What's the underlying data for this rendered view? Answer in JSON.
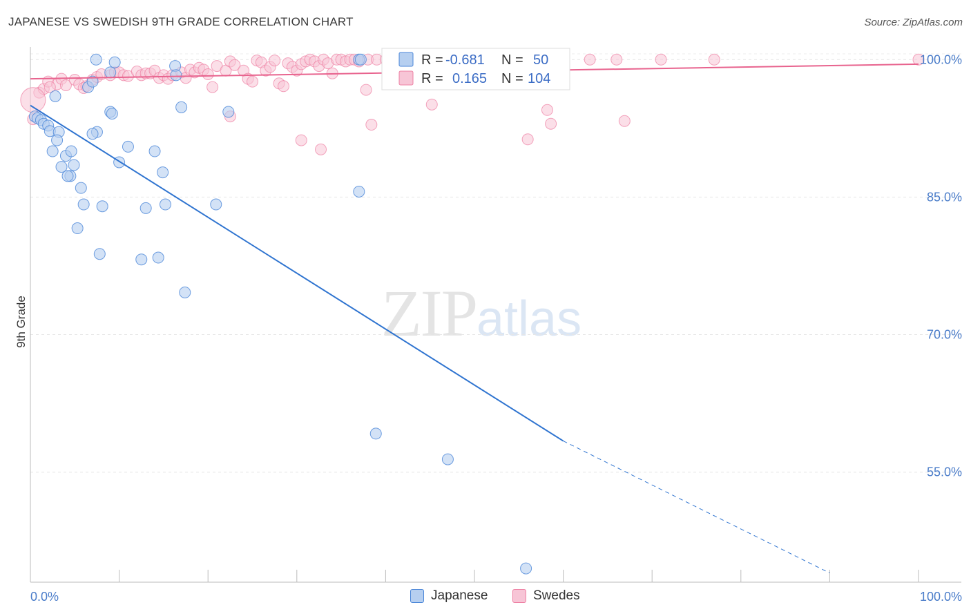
{
  "title": "JAPANESE VS SWEDISH 9TH GRADE CORRELATION CHART",
  "source": "Source: ZipAtlas.com",
  "watermark": {
    "zip": "ZIP",
    "atlas": "atlas"
  },
  "colors": {
    "japanese": "#4a86d8",
    "swedes": "#ee7fa3",
    "blue_fill": "#b6cff0",
    "pink_fill": "#f7c5d6"
  },
  "legend": {
    "rows": [
      {
        "r_label": "R =",
        "r_value": "-0.681",
        "n_label": "N =",
        "n_value": "50"
      },
      {
        "r_label": "R =",
        "r_value": "0.165",
        "n_label": "N =",
        "n_value": "104"
      }
    ]
  },
  "bottom_legend": {
    "japanese": "Japanese",
    "swedes": "Swedes"
  },
  "chart_data": {
    "type": "scatter",
    "xlabel": "",
    "ylabel": "9th Grade",
    "xlim": [
      0,
      100
    ],
    "ylim": [
      43,
      101
    ],
    "x_tick_labels": [
      "0.0%",
      "100.0%"
    ],
    "y_ticks": [
      100,
      85,
      70,
      55
    ],
    "y_tick_labels": [
      "100.0%",
      "85.0%",
      "70.0%",
      "55.0%"
    ],
    "grid": true,
    "series": [
      {
        "name": "Japanese",
        "trend": {
          "x0": 0,
          "y0": 95.0,
          "x1": 60,
          "y1": 58.4,
          "dash_to_x": 90,
          "dash_to_y": 44.0
        },
        "points": [
          [
            0.5,
            93.8
          ],
          [
            0.8,
            93.6
          ],
          [
            1.2,
            93.4
          ],
          [
            1.5,
            93.0
          ],
          [
            2.0,
            92.8
          ],
          [
            2.2,
            92.2
          ],
          [
            3.2,
            92.1
          ],
          [
            2.8,
            96.0
          ],
          [
            3.0,
            91.2
          ],
          [
            2.5,
            90.0
          ],
          [
            3.5,
            88.3
          ],
          [
            4.0,
            89.5
          ],
          [
            4.5,
            87.3
          ],
          [
            4.2,
            87.3
          ],
          [
            4.6,
            90.0
          ],
          [
            4.9,
            88.5
          ],
          [
            5.7,
            86.0
          ],
          [
            6.0,
            84.2
          ],
          [
            5.3,
            81.6
          ],
          [
            7.8,
            78.8
          ],
          [
            12.5,
            78.2
          ],
          [
            14.4,
            78.4
          ],
          [
            15.2,
            84.2
          ],
          [
            20.9,
            84.2
          ],
          [
            17.4,
            74.6
          ],
          [
            6.5,
            97.0
          ],
          [
            7.0,
            97.6
          ],
          [
            9.0,
            98.6
          ],
          [
            7.5,
            92.1
          ],
          [
            7.0,
            91.9
          ],
          [
            9.0,
            94.3
          ],
          [
            9.2,
            94.1
          ],
          [
            10.0,
            88.8
          ],
          [
            11.0,
            90.5
          ],
          [
            14.0,
            90.0
          ],
          [
            14.9,
            87.7
          ],
          [
            17.0,
            94.8
          ],
          [
            22.3,
            94.3
          ],
          [
            13.0,
            83.8
          ],
          [
            8.1,
            84.0
          ],
          [
            37.0,
            85.6
          ],
          [
            38.9,
            59.2
          ],
          [
            47.0,
            56.4
          ],
          [
            55.8,
            44.5
          ],
          [
            7.4,
            100.0
          ],
          [
            9.5,
            99.7
          ],
          [
            16.3,
            99.3
          ],
          [
            16.4,
            98.3
          ],
          [
            37.0,
            100.0
          ],
          [
            37.2,
            100.0
          ]
        ]
      },
      {
        "name": "Swedes",
        "trend": {
          "x0": 0,
          "y0": 97.9,
          "x1": 100,
          "y1": 99.5
        },
        "points": [
          [
            0.3,
            93.5
          ],
          [
            1.0,
            96.4
          ],
          [
            1.5,
            96.8
          ],
          [
            2.0,
            97.6
          ],
          [
            3.0,
            97.3
          ],
          [
            3.5,
            97.9
          ],
          [
            4.0,
            97.2
          ],
          [
            5.0,
            97.8
          ],
          [
            5.5,
            97.3
          ],
          [
            6.0,
            96.9
          ],
          [
            7.0,
            97.8
          ],
          [
            7.5,
            98.1
          ],
          [
            8.0,
            98.4
          ],
          [
            9.0,
            98.3
          ],
          [
            9.5,
            98.6
          ],
          [
            10.0,
            98.6
          ],
          [
            10.5,
            98.3
          ],
          [
            11.0,
            98.2
          ],
          [
            12.0,
            98.7
          ],
          [
            12.5,
            98.3
          ],
          [
            13.0,
            98.5
          ],
          [
            13.5,
            98.5
          ],
          [
            14.0,
            98.8
          ],
          [
            14.5,
            98.0
          ],
          [
            15.0,
            98.3
          ],
          [
            15.5,
            97.9
          ],
          [
            16.0,
            98.3
          ],
          [
            17.0,
            98.6
          ],
          [
            17.5,
            98.0
          ],
          [
            18.0,
            98.9
          ],
          [
            18.5,
            98.6
          ],
          [
            19.0,
            99.1
          ],
          [
            19.5,
            98.9
          ],
          [
            20.0,
            98.4
          ],
          [
            20.5,
            97.0
          ],
          [
            21.0,
            99.3
          ],
          [
            22.0,
            98.8
          ],
          [
            22.5,
            99.8
          ],
          [
            23.0,
            99.4
          ],
          [
            24.0,
            98.8
          ],
          [
            24.5,
            97.9
          ],
          [
            25.0,
            97.6
          ],
          [
            25.5,
            99.9
          ],
          [
            26.0,
            99.7
          ],
          [
            26.5,
            98.8
          ],
          [
            27.0,
            99.2
          ],
          [
            27.5,
            99.9
          ],
          [
            28.0,
            97.4
          ],
          [
            28.5,
            97.1
          ],
          [
            29.0,
            99.6
          ],
          [
            29.5,
            99.2
          ],
          [
            30.0,
            98.8
          ],
          [
            30.5,
            99.5
          ],
          [
            31.0,
            99.8
          ],
          [
            31.5,
            100.0
          ],
          [
            32.0,
            99.8
          ],
          [
            32.5,
            99.3
          ],
          [
            33.0,
            100.0
          ],
          [
            33.5,
            99.6
          ],
          [
            34.0,
            98.5
          ],
          [
            34.5,
            100.0
          ],
          [
            35.0,
            100.0
          ],
          [
            35.5,
            99.8
          ],
          [
            36.0,
            100.0
          ],
          [
            36.5,
            100.0
          ],
          [
            37.0,
            99.8
          ],
          [
            38.0,
            100.0
          ],
          [
            39.0,
            100.0
          ],
          [
            40.0,
            100.0
          ],
          [
            41.0,
            100.0
          ],
          [
            42.0,
            99.9
          ],
          [
            43.0,
            100.0
          ],
          [
            44.0,
            100.0
          ],
          [
            45.0,
            100.0
          ],
          [
            46.0,
            100.0
          ],
          [
            47.0,
            100.0
          ],
          [
            48.0,
            100.0
          ],
          [
            49.0,
            100.0
          ],
          [
            50.0,
            100.0
          ],
          [
            51.0,
            100.0
          ],
          [
            53.0,
            100.0
          ],
          [
            54.0,
            100.0
          ],
          [
            55.0,
            100.0
          ],
          [
            56.0,
            100.0
          ],
          [
            58.0,
            100.0
          ],
          [
            60.0,
            100.0
          ],
          [
            63.0,
            100.0
          ],
          [
            66.0,
            100.0
          ],
          [
            71.0,
            100.0
          ],
          [
            77.0,
            100.0
          ],
          [
            100.0,
            100.0
          ],
          [
            22.5,
            93.8
          ],
          [
            30.5,
            91.2
          ],
          [
            32.7,
            90.2
          ],
          [
            37.8,
            96.7
          ],
          [
            38.4,
            92.9
          ],
          [
            45.2,
            95.1
          ],
          [
            56.0,
            91.3
          ],
          [
            58.2,
            94.5
          ],
          [
            58.6,
            93.0
          ],
          [
            66.9,
            93.3
          ],
          [
            2.2,
            97.0
          ],
          [
            6.3,
            97.1
          ],
          [
            0.3,
            95.6
          ]
        ]
      }
    ]
  }
}
